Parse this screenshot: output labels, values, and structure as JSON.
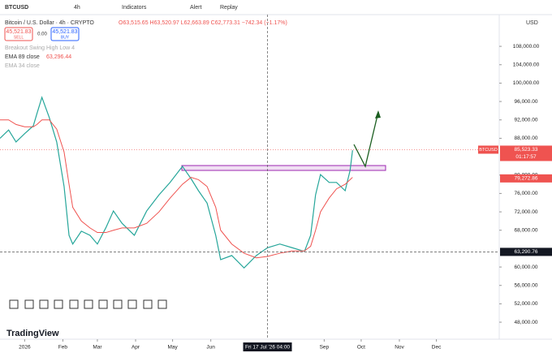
{
  "toolbar": {
    "symbol": "BTCUSD",
    "interval": "4h",
    "indicators": "Indicators",
    "alert": "Alert",
    "replay": "Replay",
    "currency": "USD"
  },
  "legend": {
    "title": "Bitcoin / U.S. Dollar · 4h · CRYPTO",
    "ohlc": "O63,515.65 H63,520.97 L62,663.89 C62,773.31 −742.34 (−1.17%)",
    "sell_price": "45,521.83",
    "sell": "SELL",
    "spread": "0.00",
    "buy_price": "45,521.83",
    "buy": "BUY",
    "indicator_1": "Breakout Swing High Low 4",
    "indicator_2": "EMA 89 close",
    "indicator_2_value": "63,296.44",
    "indicator_3": "EMA 34 close"
  },
  "logo": "TradingView",
  "chart_data": {
    "type": "line",
    "x": [
      -20,
      -13,
      -7,
      0,
      7,
      10,
      14,
      20,
      26,
      32,
      36,
      39,
      46,
      53,
      59,
      66,
      72,
      79,
      89,
      99,
      109,
      118,
      128,
      135,
      141,
      148,
      155,
      159,
      168,
      178,
      188,
      197,
      207,
      217,
      227,
      232,
      236,
      240,
      247,
      253,
      260,
      264,
      266
    ],
    "series": [
      {
        "color": "#26a69a",
        "values": [
          88000,
          89800,
          87200,
          89000,
          90700,
          93400,
          96900,
          92500,
          87200,
          77500,
          66900,
          65000,
          67800,
          66900,
          65000,
          68600,
          72200,
          69500,
          66900,
          72200,
          75700,
          78400,
          81900,
          79200,
          76600,
          73900,
          66900,
          61600,
          62500,
          59800,
          62500,
          64200,
          65000,
          64200,
          63400,
          66900,
          75700,
          80100,
          78400,
          78400,
          76600,
          81000,
          85400
        ]
      },
      {
        "color": "#ef5350",
        "values": [
          92000,
          92000,
          91000,
          90500,
          90500,
          91000,
          92000,
          92000,
          90000,
          85000,
          78000,
          73000,
          70000,
          68500,
          67500,
          67500,
          68000,
          68500,
          68500,
          69500,
          72000,
          75000,
          78000,
          79500,
          79000,
          77500,
          73000,
          68000,
          65000,
          63000,
          62000,
          62300,
          63000,
          63500,
          63500,
          64500,
          68000,
          72000,
          75000,
          77000,
          78000,
          79000,
          79500
        ]
      }
    ],
    "xlim": [
      -20,
      385
    ],
    "ylim": [
      44300,
      114900
    ],
    "xticks": [
      {
        "value": 0,
        "label": "2026"
      },
      {
        "value": 31,
        "label": "Feb"
      },
      {
        "value": 59,
        "label": "Mar"
      },
      {
        "value": 90,
        "label": "Apr"
      },
      {
        "value": 120,
        "label": "May"
      },
      {
        "value": 151,
        "label": "Jun"
      },
      {
        "value": 243,
        "label": "Sep"
      },
      {
        "value": 273,
        "label": "Oct"
      },
      {
        "value": 304,
        "label": "Nov"
      },
      {
        "value": 334,
        "label": "Dec"
      }
    ],
    "yticks": [
      {
        "value": 48000,
        "label": "48,000.00"
      },
      {
        "value": 52000,
        "label": "52,000.00"
      },
      {
        "value": 56000,
        "label": "56,000.00"
      },
      {
        "value": 60000,
        "label": "60,000.00"
      },
      {
        "value": 68000,
        "label": "68,000.00"
      },
      {
        "value": 72000,
        "label": "72,000.00"
      },
      {
        "value": 76000,
        "label": "76,000.00"
      },
      {
        "value": 80000,
        "label": "80,000.00"
      },
      {
        "value": 88000,
        "label": "88,000.00"
      },
      {
        "value": 92000,
        "label": "92,000.00"
      },
      {
        "value": 96000,
        "label": "96,000.00"
      },
      {
        "value": 100000,
        "label": "100,000.00"
      },
      {
        "value": 104000,
        "label": "104,000.00"
      },
      {
        "value": 108000,
        "label": "108,000.00"
      }
    ],
    "price_tag": {
      "symbol": "BTCUSD",
      "value": 85523.33,
      "label": "85,523.33",
      "countdown": "01:17:57"
    },
    "ema_tag": {
      "value": 79272.86,
      "label": "79,272.86"
    },
    "crosshair": {
      "price": {
        "value": 63290.76,
        "label": "63,290.76"
      },
      "time": {
        "value": 197,
        "label": "Fri 17 Jul '26 04:00"
      }
    }
  }
}
